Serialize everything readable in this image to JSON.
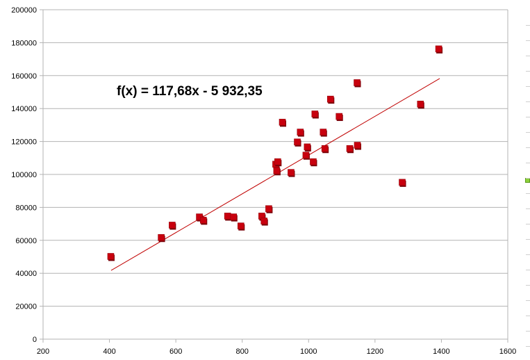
{
  "chart_data": {
    "type": "scatter",
    "title": "",
    "xlabel": "",
    "ylabel": "",
    "xlim": [
      200,
      1600
    ],
    "ylim": [
      0,
      200000
    ],
    "x_ticks": [
      "200",
      "400",
      "600",
      "800",
      "1000",
      "1200",
      "1400",
      "1600"
    ],
    "y_ticks": [
      "0",
      "20000",
      "40000",
      "60000",
      "80000",
      "100000",
      "120000",
      "140000",
      "160000",
      "180000",
      "200000"
    ],
    "grid": "horizontal",
    "marker_color": "#c8000e",
    "trendline_color": "#c00000",
    "trendline": {
      "equation": "f(x) = 117,68x - 5 932,35",
      "slope": 117.68,
      "intercept": -5932.35,
      "x_range": [
        405,
        1395
      ]
    },
    "series": [
      {
        "points": [
          [
            405,
            50000
          ],
          [
            557,
            61500
          ],
          [
            590,
            69000
          ],
          [
            672,
            74000
          ],
          [
            684,
            72000
          ],
          [
            757,
            74500
          ],
          [
            775,
            74000
          ],
          [
            797,
            68500
          ],
          [
            860,
            74500
          ],
          [
            867,
            71500
          ],
          [
            881,
            79000
          ],
          [
            902,
            106000
          ],
          [
            905,
            102000
          ],
          [
            908,
            107500
          ],
          [
            922,
            131500
          ],
          [
            948,
            101000
          ],
          [
            967,
            119500
          ],
          [
            976,
            125500
          ],
          [
            993,
            111500
          ],
          [
            997,
            116500
          ],
          [
            1015,
            107500
          ],
          [
            1020,
            136500
          ],
          [
            1045,
            125500
          ],
          [
            1050,
            115500
          ],
          [
            1067,
            145500
          ],
          [
            1093,
            135000
          ],
          [
            1125,
            115500
          ],
          [
            1147,
            155500
          ],
          [
            1148,
            117500
          ],
          [
            1283,
            95000
          ],
          [
            1338,
            142500
          ],
          [
            1393,
            176000
          ]
        ]
      }
    ]
  }
}
